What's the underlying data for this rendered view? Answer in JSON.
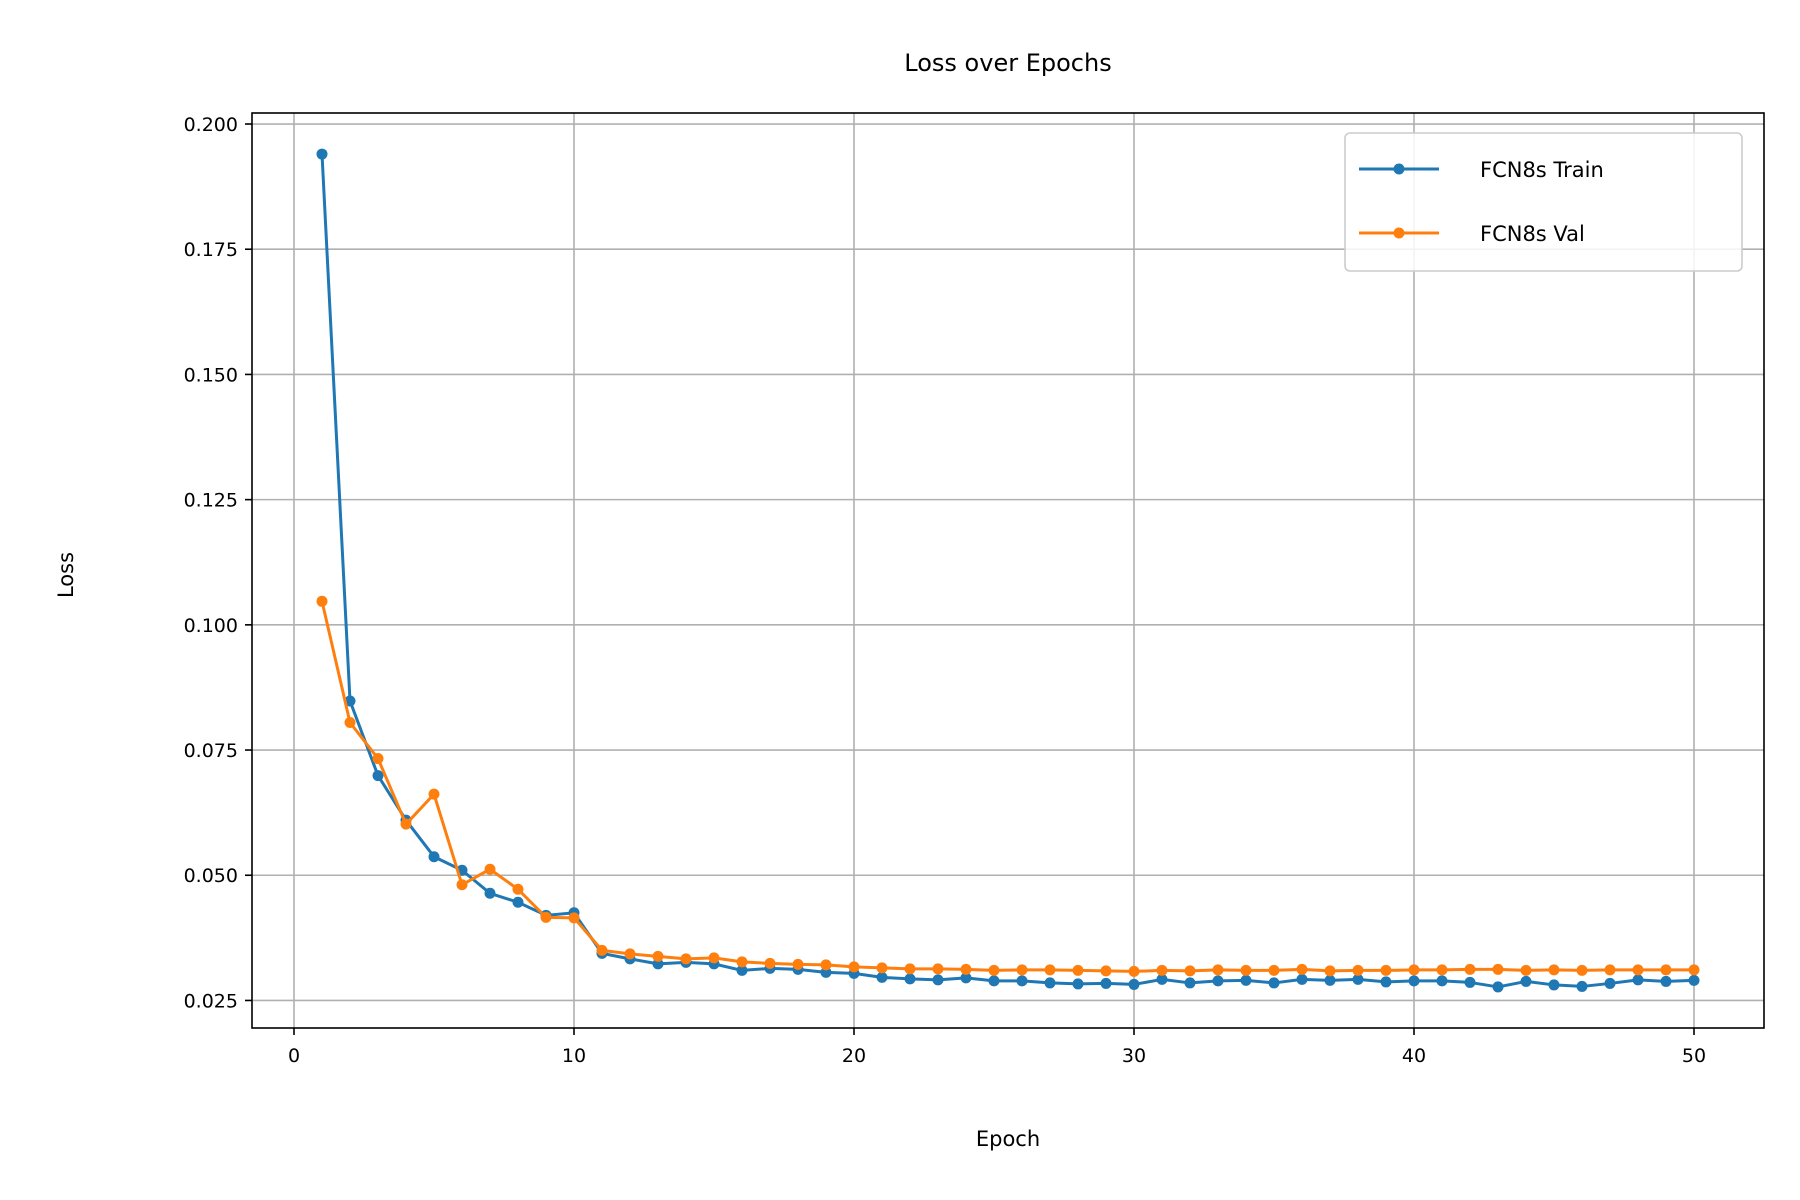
{
  "chart_data": {
    "type": "line",
    "title": "Loss over Epochs",
    "xlabel": "Epoch",
    "ylabel": "Loss",
    "xlim": [
      -1.5,
      52.5
    ],
    "ylim": [
      0.0195,
      0.2022
    ],
    "xticks": [
      0,
      10,
      20,
      30,
      40,
      50
    ],
    "yticks": [
      0.025,
      0.05,
      0.075,
      0.1,
      0.125,
      0.15,
      0.175,
      0.2
    ],
    "ytick_labels": [
      "0.025",
      "0.050",
      "0.075",
      "0.100",
      "0.125",
      "0.150",
      "0.175",
      "0.200"
    ],
    "grid": true,
    "legend_position": "top-right",
    "x": [
      1,
      2,
      3,
      4,
      5,
      6,
      7,
      8,
      9,
      10,
      11,
      12,
      13,
      14,
      15,
      16,
      17,
      18,
      19,
      20,
      21,
      22,
      23,
      24,
      25,
      26,
      27,
      28,
      29,
      30,
      31,
      32,
      33,
      34,
      35,
      36,
      37,
      38,
      39,
      40,
      41,
      42,
      43,
      44,
      45,
      46,
      47,
      48,
      49,
      50
    ],
    "series": [
      {
        "name": "FCN8s Train",
        "color": "#1f77b4",
        "values": [
          0.194,
          0.0848,
          0.0699,
          0.061,
          0.0537,
          0.051,
          0.0464,
          0.0446,
          0.042,
          0.0425,
          0.0344,
          0.0333,
          0.0323,
          0.0326,
          0.0323,
          0.031,
          0.0314,
          0.0312,
          0.0306,
          0.0304,
          0.0296,
          0.0293,
          0.0291,
          0.0295,
          0.0289,
          0.0289,
          0.0285,
          0.0283,
          0.0284,
          0.0282,
          0.0292,
          0.0285,
          0.0289,
          0.029,
          0.0285,
          0.0292,
          0.029,
          0.0292,
          0.0287,
          0.0289,
          0.0289,
          0.0286,
          0.0277,
          0.0288,
          0.0281,
          0.0278,
          0.0284,
          0.0291,
          0.0288,
          0.029
        ]
      },
      {
        "name": "FCN8s Val",
        "color": "#ff7f0e",
        "values": [
          0.1047,
          0.0805,
          0.0733,
          0.0602,
          0.0662,
          0.0481,
          0.0512,
          0.0472,
          0.0416,
          0.0415,
          0.035,
          0.0343,
          0.0338,
          0.0333,
          0.0335,
          0.0327,
          0.0324,
          0.0322,
          0.0321,
          0.0317,
          0.0315,
          0.0313,
          0.0313,
          0.0312,
          0.031,
          0.0311,
          0.0311,
          0.031,
          0.0309,
          0.0308,
          0.031,
          0.0309,
          0.0311,
          0.031,
          0.031,
          0.0312,
          0.0309,
          0.031,
          0.031,
          0.0311,
          0.0311,
          0.0312,
          0.0312,
          0.031,
          0.0311,
          0.031,
          0.0311,
          0.0311,
          0.0311,
          0.0311
        ]
      }
    ]
  }
}
